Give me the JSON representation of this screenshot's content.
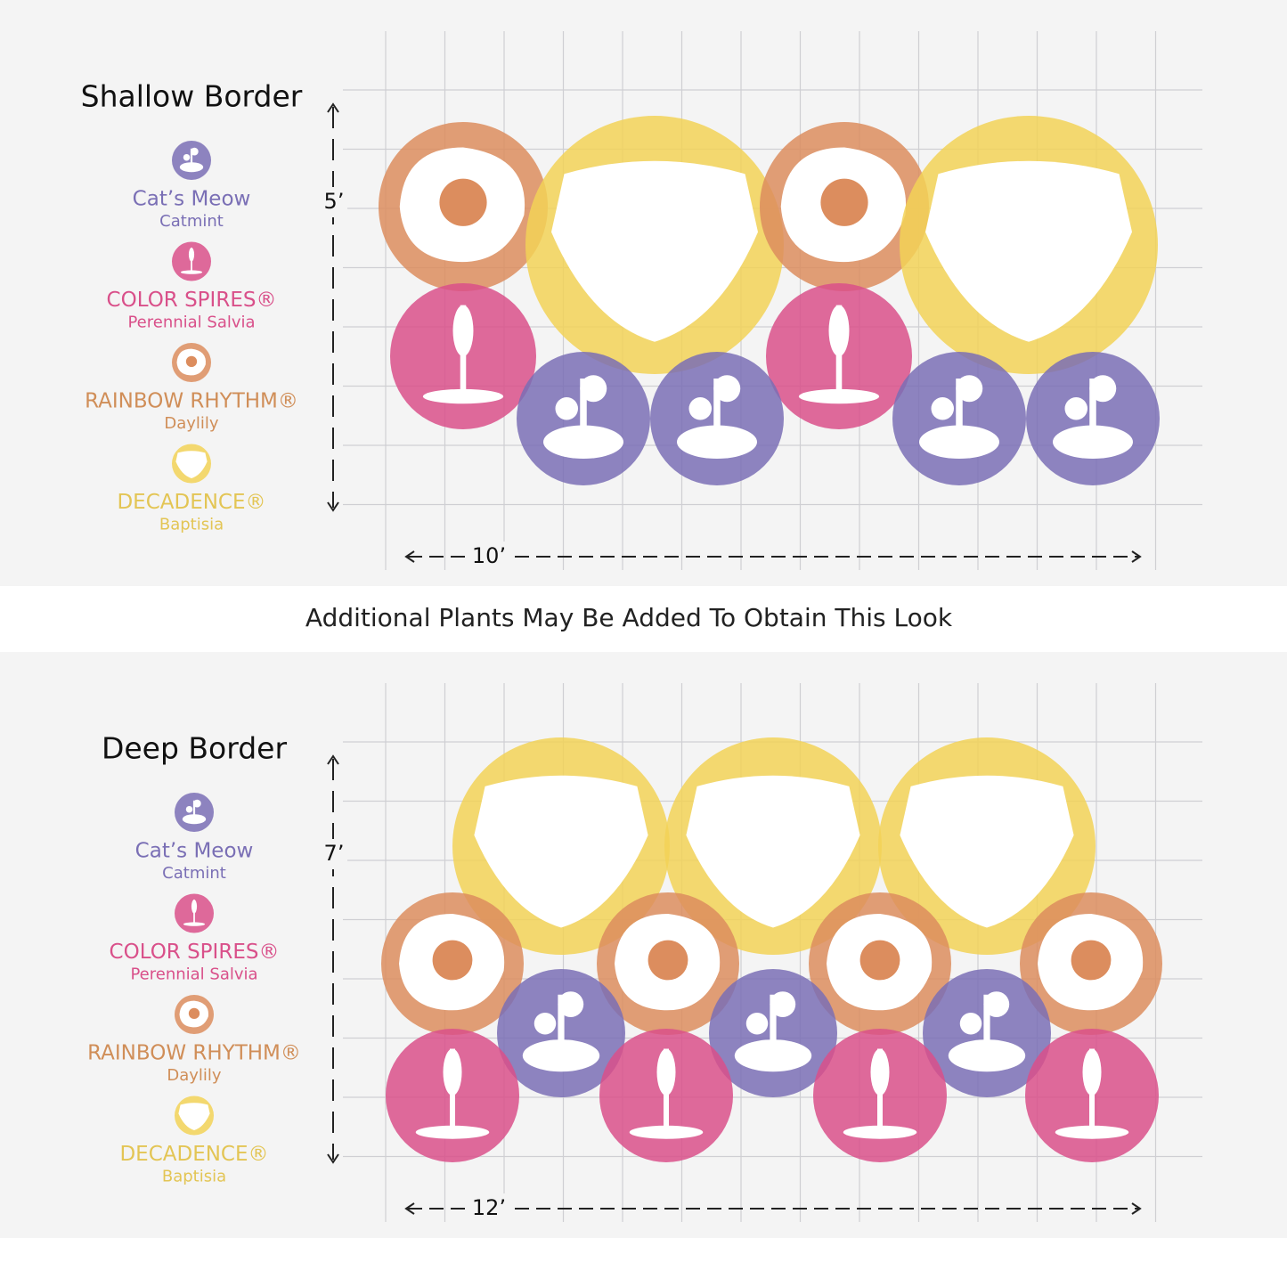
{
  "panels": [
    {
      "title": "Shallow Border",
      "height_label": "5’",
      "width_label": "10’",
      "legend": [
        {
          "name": "Cat’s Meow",
          "sub": "Catmint"
        },
        {
          "name": "COLOR SPIRES®",
          "sub": "Perennial Salvia"
        },
        {
          "name": "RAINBOW RHYTHM®",
          "sub": "Daylily"
        },
        {
          "name": "DECADENCE®",
          "sub": "Baptisia"
        }
      ]
    },
    {
      "title": "Deep Border",
      "height_label": "7’",
      "width_label": "12’",
      "legend": [
        {
          "name": "Cat’s Meow",
          "sub": "Catmint"
        },
        {
          "name": "COLOR SPIRES®",
          "sub": "Perennial Salvia"
        },
        {
          "name": "RAINBOW RHYTHM®",
          "sub": "Daylily"
        },
        {
          "name": "DECADENCE®",
          "sub": "Baptisia"
        }
      ]
    }
  ],
  "caption": "Additional Plants May Be Added To Obtain This Look"
}
